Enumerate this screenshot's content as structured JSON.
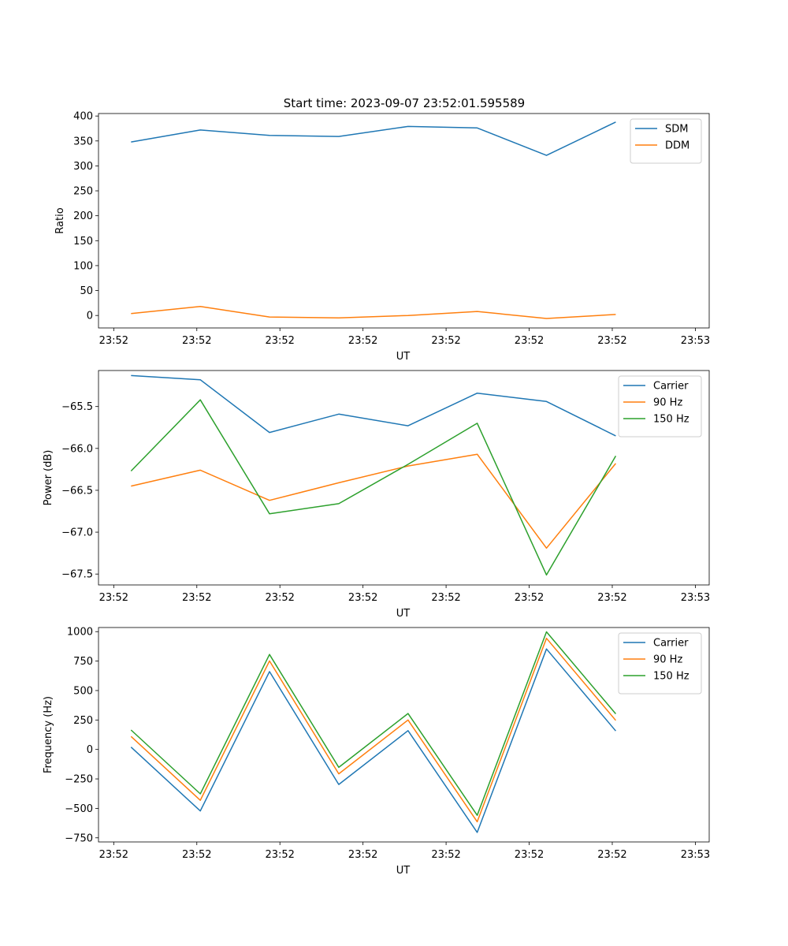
{
  "figure_title": "Start time: 2023-09-07 23:52:01.595589",
  "chart_data": [
    {
      "type": "line",
      "title": "Start time: 2023-09-07 23:52:01.595589",
      "xlabel": "UT",
      "ylabel": "Ratio",
      "x_index": [
        0,
        1,
        2,
        3,
        4,
        5,
        6,
        7
      ],
      "xlim": [
        -0.47,
        8.35
      ],
      "xtick_positions": [
        -0.25,
        0.95,
        2.15,
        3.35,
        4.55,
        5.75,
        6.95,
        8.15
      ],
      "xtick_labels": [
        "23:52",
        "23:52",
        "23:52",
        "23:52",
        "23:52",
        "23:52",
        "23:52",
        "23:53"
      ],
      "ylim": [
        -25,
        405
      ],
      "yticks": [
        0,
        50,
        100,
        150,
        200,
        250,
        300,
        350,
        400
      ],
      "ytick_labels": [
        "0",
        "50",
        "100",
        "150",
        "200",
        "250",
        "300",
        "350",
        "400"
      ],
      "legend_position": "upper right",
      "series": [
        {
          "name": "SDM",
          "color": "#1f77b4",
          "values": [
            348,
            372,
            361,
            359,
            379,
            376,
            321,
            388
          ]
        },
        {
          "name": "DDM",
          "color": "#ff7f0e",
          "values": [
            4,
            18,
            -3,
            -5,
            0,
            8,
            -6,
            2
          ]
        }
      ]
    },
    {
      "type": "line",
      "title": "",
      "xlabel": "UT",
      "ylabel": "Power (dB)",
      "x_index": [
        0,
        1,
        2,
        3,
        4,
        5,
        6,
        7
      ],
      "xlim": [
        -0.47,
        8.35
      ],
      "xtick_positions": [
        -0.25,
        0.95,
        2.15,
        3.35,
        4.55,
        5.75,
        6.95,
        8.15
      ],
      "xtick_labels": [
        "23:52",
        "23:52",
        "23:52",
        "23:52",
        "23:52",
        "23:52",
        "23:52",
        "23:53"
      ],
      "ylim": [
        -67.63,
        -65.07
      ],
      "yticks": [
        -67.5,
        -67.0,
        -66.5,
        -66.0,
        -65.5
      ],
      "ytick_labels": [
        "−67.5",
        "−67.0",
        "−66.5",
        "−66.0",
        "−65.5"
      ],
      "legend_position": "upper right",
      "series": [
        {
          "name": "Carrier",
          "color": "#1f77b4",
          "values": [
            -65.13,
            -65.18,
            -65.81,
            -65.59,
            -65.73,
            -65.34,
            -65.44,
            -65.85
          ]
        },
        {
          "name": "90 Hz",
          "color": "#ff7f0e",
          "values": [
            -66.45,
            -66.26,
            -66.62,
            -66.41,
            -66.21,
            -66.07,
            -67.19,
            -66.18
          ]
        },
        {
          "name": "150 Hz",
          "color": "#2ca02c",
          "values": [
            -66.27,
            -65.42,
            -66.78,
            -66.66,
            -66.19,
            -65.7,
            -67.51,
            -66.09
          ]
        }
      ]
    },
    {
      "type": "line",
      "title": "",
      "xlabel": "UT",
      "ylabel": "Frequency (Hz)",
      "x_index": [
        0,
        1,
        2,
        3,
        4,
        5,
        6,
        7
      ],
      "xlim": [
        -0.47,
        8.35
      ],
      "xtick_positions": [
        -0.25,
        0.95,
        2.15,
        3.35,
        4.55,
        5.75,
        6.95,
        8.15
      ],
      "xtick_labels": [
        "23:52",
        "23:52",
        "23:52",
        "23:52",
        "23:52",
        "23:52",
        "23:52",
        "23:53"
      ],
      "ylim": [
        -785,
        1035
      ],
      "yticks": [
        -750,
        -500,
        -250,
        0,
        250,
        500,
        750,
        1000
      ],
      "ytick_labels": [
        "−750",
        "−500",
        "−250",
        "0",
        "250",
        "500",
        "750",
        "1000"
      ],
      "legend_position": "upper right",
      "series": [
        {
          "name": "Carrier",
          "color": "#1f77b4",
          "values": [
            20,
            -522,
            661,
            -297,
            160,
            -704,
            853,
            157
          ]
        },
        {
          "name": "90 Hz",
          "color": "#ff7f0e",
          "values": [
            110,
            -432,
            751,
            -207,
            250,
            -614,
            943,
            247
          ]
        },
        {
          "name": "150 Hz",
          "color": "#2ca02c",
          "values": [
            165,
            -377,
            806,
            -152,
            305,
            -559,
            998,
            302
          ]
        }
      ]
    }
  ]
}
